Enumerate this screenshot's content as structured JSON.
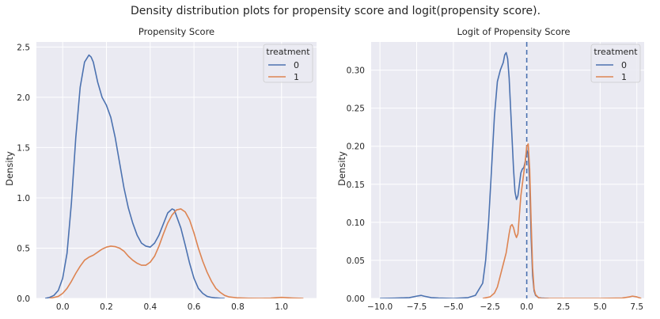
{
  "suptitle": "Density distribution plots for propensity score and logit(propensity score).",
  "colors": {
    "treatment_0": "#4c72b0",
    "treatment_1": "#dd8452",
    "axes_bg": "#eaeaf2",
    "grid": "#ffffff"
  },
  "chart_data": [
    {
      "type": "line",
      "title": "Propensity Score",
      "xlabel": "",
      "ylabel": "Density",
      "xlim": [
        -0.12,
        1.16
      ],
      "ylim": [
        0,
        2.55
      ],
      "xticks": [
        0.0,
        0.2,
        0.4,
        0.6,
        0.8,
        1.0
      ],
      "xtick_labels": [
        "0.0",
        "0.2",
        "0.4",
        "0.6",
        "0.8",
        "1.0"
      ],
      "yticks": [
        0.0,
        0.5,
        1.0,
        1.5,
        2.0,
        2.5
      ],
      "ytick_labels": [
        "0.0",
        "0.5",
        "1.0",
        "1.5",
        "2.0",
        "2.5"
      ],
      "grid": true,
      "legend": {
        "title": "treatment",
        "position": "top-right"
      },
      "series": [
        {
          "name": "0",
          "color": "#4c72b0",
          "x": [
            -0.08,
            -0.06,
            -0.04,
            -0.02,
            0.0,
            0.02,
            0.04,
            0.06,
            0.08,
            0.1,
            0.12,
            0.13,
            0.14,
            0.16,
            0.18,
            0.2,
            0.22,
            0.24,
            0.26,
            0.28,
            0.3,
            0.32,
            0.34,
            0.36,
            0.38,
            0.4,
            0.42,
            0.44,
            0.46,
            0.48,
            0.5,
            0.51,
            0.52,
            0.54,
            0.56,
            0.58,
            0.6,
            0.62,
            0.64,
            0.66,
            0.68,
            0.7,
            0.72,
            0.74
          ],
          "y": [
            0.0,
            0.01,
            0.03,
            0.08,
            0.2,
            0.45,
            0.95,
            1.6,
            2.1,
            2.35,
            2.42,
            2.4,
            2.35,
            2.15,
            2.0,
            1.92,
            1.8,
            1.6,
            1.35,
            1.1,
            0.9,
            0.75,
            0.63,
            0.55,
            0.52,
            0.51,
            0.55,
            0.63,
            0.74,
            0.85,
            0.89,
            0.88,
            0.82,
            0.7,
            0.53,
            0.35,
            0.2,
            0.1,
            0.05,
            0.02,
            0.01,
            0.005,
            0.002,
            0.0
          ]
        },
        {
          "name": "1",
          "color": "#dd8452",
          "x": [
            -0.06,
            -0.04,
            -0.02,
            0.0,
            0.02,
            0.04,
            0.06,
            0.08,
            0.1,
            0.12,
            0.14,
            0.16,
            0.18,
            0.2,
            0.22,
            0.24,
            0.26,
            0.28,
            0.3,
            0.32,
            0.34,
            0.36,
            0.38,
            0.4,
            0.42,
            0.44,
            0.46,
            0.48,
            0.5,
            0.52,
            0.54,
            0.56,
            0.58,
            0.6,
            0.62,
            0.64,
            0.66,
            0.68,
            0.7,
            0.72,
            0.74,
            0.76,
            0.8,
            0.85,
            0.9,
            0.95,
            1.0,
            1.05,
            1.1
          ],
          "y": [
            0.0,
            0.01,
            0.02,
            0.05,
            0.1,
            0.17,
            0.25,
            0.32,
            0.38,
            0.41,
            0.43,
            0.46,
            0.49,
            0.51,
            0.52,
            0.515,
            0.5,
            0.47,
            0.42,
            0.38,
            0.35,
            0.33,
            0.33,
            0.36,
            0.42,
            0.52,
            0.64,
            0.75,
            0.83,
            0.88,
            0.89,
            0.86,
            0.78,
            0.65,
            0.5,
            0.37,
            0.26,
            0.17,
            0.1,
            0.06,
            0.03,
            0.015,
            0.005,
            0.002,
            0.001,
            0.003,
            0.01,
            0.004,
            0.0
          ]
        }
      ]
    },
    {
      "type": "line",
      "title": "Logit of Propensity Score",
      "xlabel": "",
      "ylabel": "Density",
      "xlim": [
        -10.6,
        8.0
      ],
      "ylim": [
        0,
        0.337
      ],
      "xticks": [
        -10.0,
        -7.5,
        -5.0,
        -2.5,
        0.0,
        2.5,
        5.0,
        7.5
      ],
      "xtick_labels": [
        "−10.0",
        "−7.5",
        "−5.0",
        "−2.5",
        "0.0",
        "2.5",
        "5.0",
        "7.5"
      ],
      "yticks": [
        0.0,
        0.05,
        0.1,
        0.15,
        0.2,
        0.25,
        0.3
      ],
      "ytick_labels": [
        "0.00",
        "0.05",
        "0.10",
        "0.15",
        "0.20",
        "0.25",
        "0.30"
      ],
      "grid": true,
      "vline": {
        "x": 0.0,
        "style": "dashed"
      },
      "legend": {
        "title": "treatment",
        "position": "top-right"
      },
      "series": [
        {
          "name": "0",
          "color": "#4c72b0",
          "x": [
            -10.0,
            -9.0,
            -8.0,
            -7.5,
            -7.2,
            -7.0,
            -6.5,
            -6.0,
            -5.0,
            -4.0,
            -3.5,
            -3.0,
            -2.8,
            -2.6,
            -2.4,
            -2.2,
            -2.0,
            -1.8,
            -1.6,
            -1.5,
            -1.4,
            -1.3,
            -1.2,
            -1.1,
            -1.0,
            -0.9,
            -0.8,
            -0.7,
            -0.6,
            -0.5,
            -0.4,
            -0.3,
            -0.2,
            -0.1,
            0.0,
            0.1,
            0.2,
            0.3,
            0.4,
            0.5,
            0.6,
            0.8,
            1.0,
            1.5
          ],
          "y": [
            0.0,
            0.0003,
            0.001,
            0.003,
            0.004,
            0.003,
            0.001,
            0.0005,
            0.0,
            0.001,
            0.004,
            0.02,
            0.05,
            0.1,
            0.17,
            0.24,
            0.285,
            0.3,
            0.31,
            0.32,
            0.323,
            0.315,
            0.29,
            0.25,
            0.21,
            0.17,
            0.14,
            0.13,
            0.135,
            0.15,
            0.165,
            0.17,
            0.172,
            0.18,
            0.195,
            0.19,
            0.15,
            0.08,
            0.03,
            0.01,
            0.004,
            0.001,
            0.0005,
            0.0
          ]
        },
        {
          "name": "1",
          "color": "#dd8452",
          "x": [
            -3.0,
            -2.5,
            -2.2,
            -2.0,
            -1.8,
            -1.6,
            -1.4,
            -1.2,
            -1.1,
            -1.0,
            -0.9,
            -0.8,
            -0.7,
            -0.6,
            -0.5,
            -0.4,
            -0.3,
            -0.2,
            -0.1,
            0.0,
            0.1,
            0.2,
            0.3,
            0.4,
            0.5,
            0.6,
            0.8,
            1.0,
            1.5,
            3.0,
            5.0,
            6.5,
            7.0,
            7.2,
            7.5,
            7.8
          ],
          "y": [
            0.0,
            0.002,
            0.007,
            0.015,
            0.03,
            0.045,
            0.06,
            0.085,
            0.095,
            0.097,
            0.093,
            0.085,
            0.08,
            0.085,
            0.11,
            0.135,
            0.15,
            0.165,
            0.18,
            0.2,
            0.203,
            0.17,
            0.1,
            0.04,
            0.012,
            0.005,
            0.001,
            0.0,
            0.0,
            0.0,
            0.0,
            0.0005,
            0.002,
            0.003,
            0.002,
            0.0
          ]
        }
      ]
    }
  ]
}
